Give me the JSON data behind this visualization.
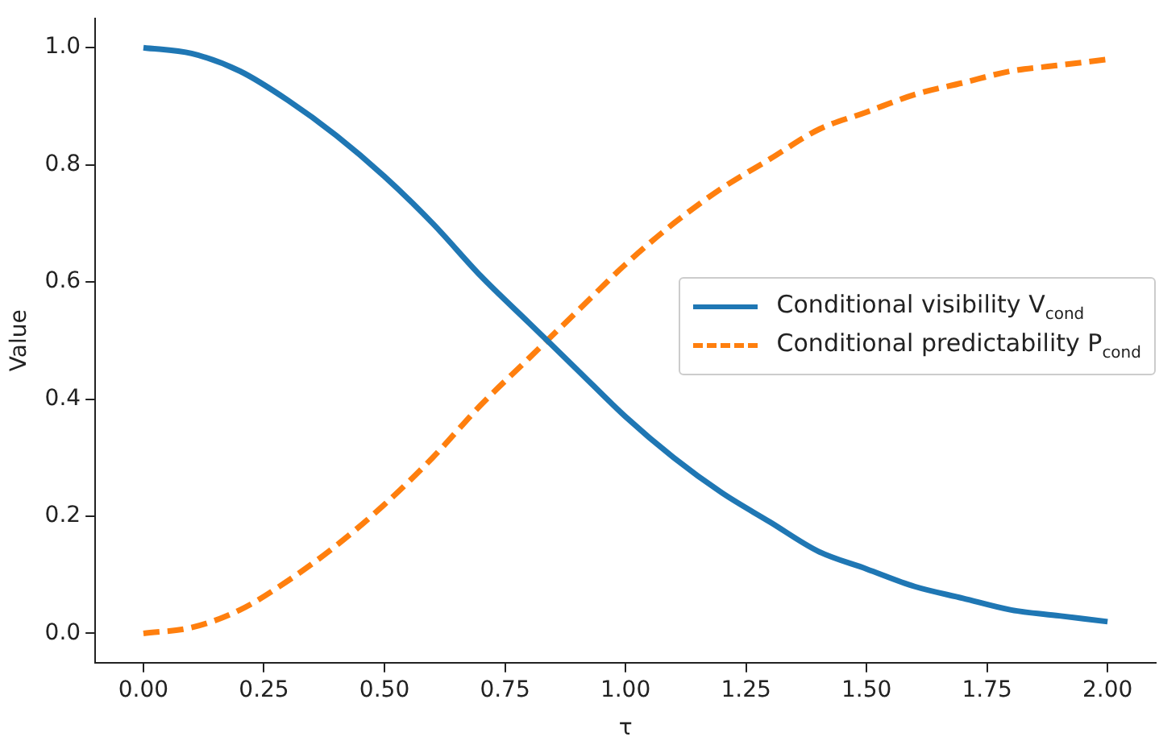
{
  "chart_data": {
    "type": "line",
    "xlabel": "τ",
    "ylabel": "Value",
    "x": [
      0,
      0.1,
      0.2,
      0.3,
      0.4,
      0.5,
      0.6,
      0.7,
      0.8,
      0.9,
      1.0,
      1.1,
      1.2,
      1.3,
      1.4,
      1.5,
      1.6,
      1.7,
      1.8,
      1.9,
      2.0
    ],
    "series": [
      {
        "name": "Conditional visibility V$_{cond}$",
        "color": "#1f77b4",
        "line_style": "solid",
        "values": [
          1.0,
          0.99,
          0.96,
          0.91,
          0.85,
          0.78,
          0.7,
          0.61,
          0.53,
          0.45,
          0.37,
          0.3,
          0.24,
          0.19,
          0.14,
          0.11,
          0.08,
          0.06,
          0.04,
          0.03,
          0.02
        ]
      },
      {
        "name": "Conditional predictability P$_{cond}$",
        "color": "#ff7f0e",
        "line_style": "dashed",
        "values": [
          0.0,
          0.01,
          0.04,
          0.09,
          0.15,
          0.22,
          0.3,
          0.39,
          0.47,
          0.55,
          0.63,
          0.7,
          0.76,
          0.81,
          0.86,
          0.89,
          0.92,
          0.94,
          0.96,
          0.97,
          0.98
        ]
      }
    ],
    "xlim": [
      -0.1,
      2.1
    ],
    "xticks": [
      {
        "value": 0,
        "label": "0.00"
      },
      {
        "value": 0.25,
        "label": "0.25"
      },
      {
        "value": 0.5,
        "label": "0.50"
      },
      {
        "value": 0.75,
        "label": "0.75"
      },
      {
        "value": 1,
        "label": "1.00"
      },
      {
        "value": 1.25,
        "label": "1.25"
      },
      {
        "value": 1.5,
        "label": "1.50"
      },
      {
        "value": 1.75,
        "label": "1.75"
      },
      {
        "value": 2,
        "label": "2.00"
      }
    ],
    "ylim": [
      -0.05,
      1.05
    ],
    "yticks": [
      {
        "value": 0,
        "label": "0.0"
      },
      {
        "value": 0.2,
        "label": "0.2"
      },
      {
        "value": 0.4,
        "label": "0.4"
      },
      {
        "value": 0.6,
        "label": "0.6"
      },
      {
        "value": 0.8,
        "label": "0.8"
      },
      {
        "value": 1,
        "label": "1.0"
      }
    ],
    "grid": false,
    "legend": "right",
    "marker": "none"
  }
}
